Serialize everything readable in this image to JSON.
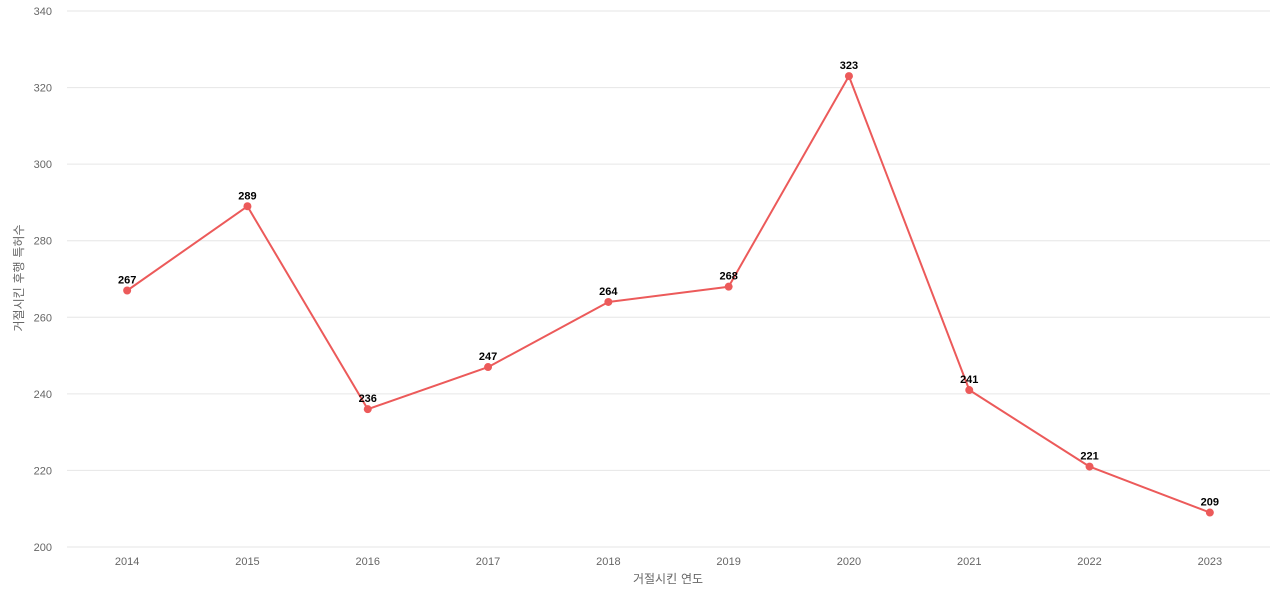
{
  "chart_data": {
    "type": "line",
    "title": "",
    "xlabel": "거절시킨 연도",
    "ylabel": "거절시킨 후행 특허수",
    "categories": [
      "2014",
      "2015",
      "2016",
      "2017",
      "2018",
      "2019",
      "2020",
      "2021",
      "2022",
      "2023"
    ],
    "series": [
      {
        "values": [
          267,
          289,
          236,
          247,
          264,
          268,
          323,
          241,
          221,
          209
        ],
        "color": "#ec5a5a"
      }
    ],
    "ylim": [
      200,
      340
    ],
    "yticks": [
      200,
      220,
      240,
      260,
      280,
      300,
      320,
      340
    ],
    "grid": true,
    "data_labels": true,
    "legend": "none"
  }
}
